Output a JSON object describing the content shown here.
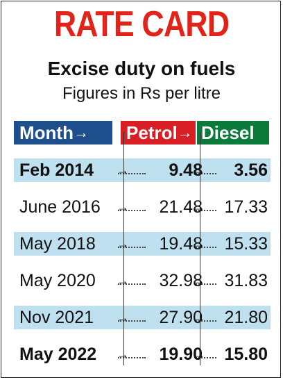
{
  "chart_data": {
    "type": "table",
    "title": "RATE CARD",
    "subtitle": "Excise duty on fuels",
    "units": "Figures in Rs per litre",
    "columns": [
      "Month",
      "Petrol",
      "Diesel"
    ],
    "rows": [
      {
        "period": "Feb 2014",
        "petrol": "9.48",
        "diesel": "3.56",
        "bold": true
      },
      {
        "period": "June 2016",
        "petrol": "21.48",
        "diesel": "17.33",
        "bold": false
      },
      {
        "period": "May 2018",
        "petrol": "19.48",
        "diesel": "15.33",
        "bold": false
      },
      {
        "period": "May 2020",
        "petrol": "32.98",
        "diesel": "31.83",
        "bold": false
      },
      {
        "period": "Nov 2021",
        "petrol": "27.90",
        "diesel": "21.80",
        "bold": false
      },
      {
        "period": "May 2022",
        "petrol": "19.90",
        "diesel": "15.80",
        "bold": true
      }
    ],
    "colors": {
      "title": "#e2231a",
      "month": "#1f4e8c",
      "petrol": "#d81f26",
      "diesel": "#0b7a3b",
      "band": "#bfe0ee"
    }
  }
}
